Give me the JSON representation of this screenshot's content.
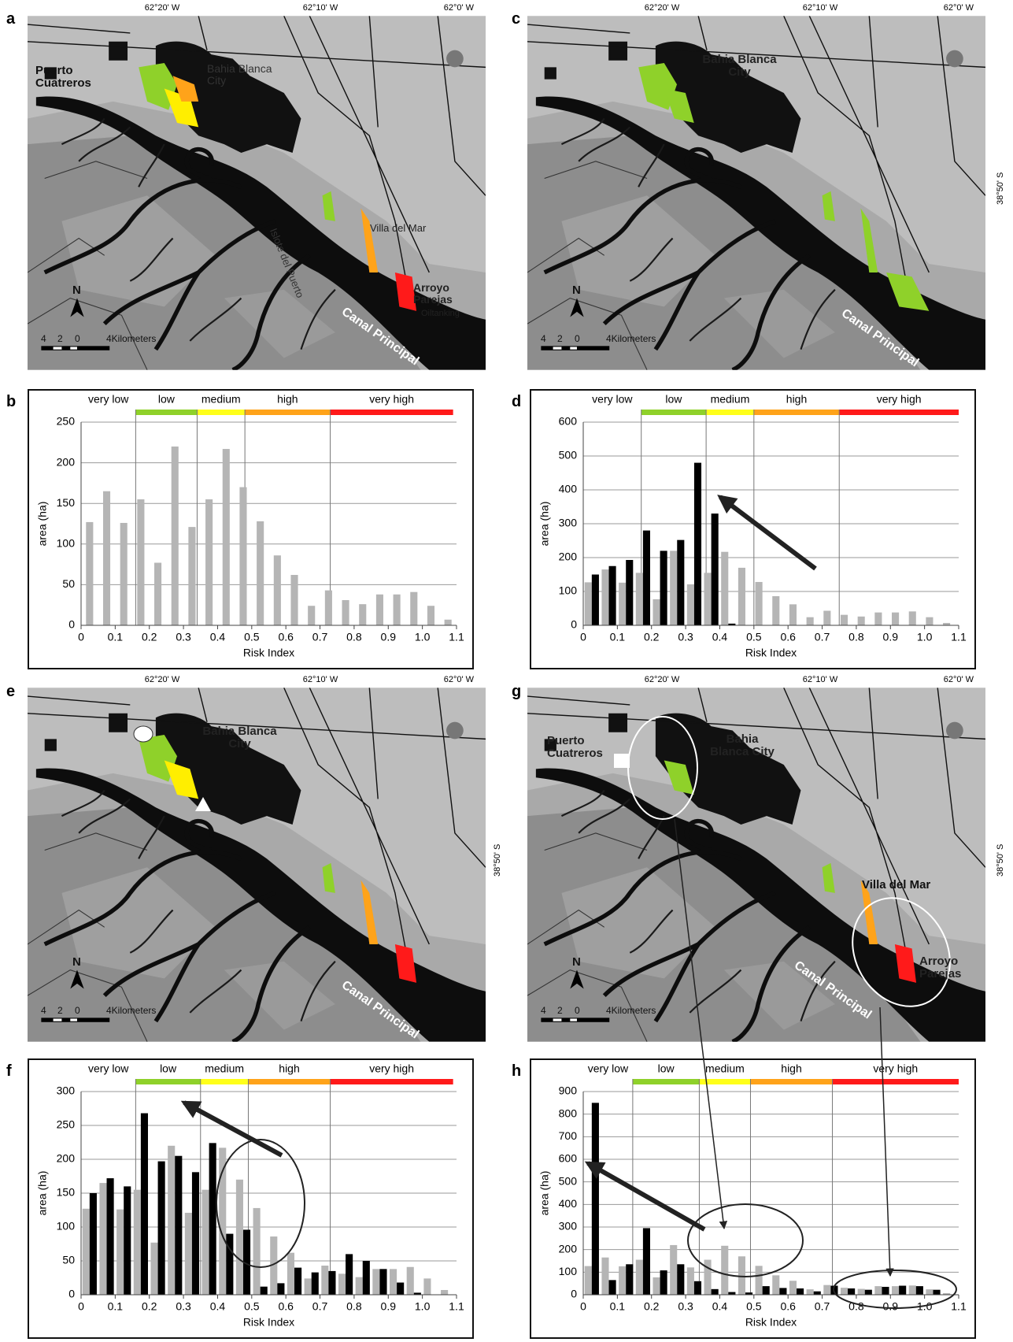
{
  "maps": [
    {
      "panel": "a",
      "lon_ticks": [
        "62°20' W",
        "62°10' W",
        "62°0' W"
      ],
      "labels": [
        "Puerto Cuatreros",
        "Bahia Blanca City",
        "Islote del Puerto",
        "Villa del Mar",
        "Arroyo Parejas",
        "Oiltanking",
        "Canal Principal"
      ],
      "scale_bar": [
        "4",
        "2",
        "0",
        "4Kilometers"
      ],
      "north": "N"
    },
    {
      "panel": "c",
      "lon_ticks": [
        "62°20' W",
        "62°10' W",
        "62°0' W"
      ],
      "lat_tick": "38°50' S",
      "labels": [
        "Bahia Blanca City",
        "Canal Principal"
      ],
      "scale_bar": [
        "4",
        "2",
        "0",
        "4Kilometers"
      ],
      "north": "N"
    },
    {
      "panel": "e",
      "lon_ticks": [
        "62°20' W",
        "62°10' W",
        "62°0' W"
      ],
      "lat_tick": "38°50' S",
      "labels": [
        "Bahia Blanca City",
        "Canal Principal"
      ],
      "scale_bar": [
        "4",
        "2",
        "0",
        "4Kilometers"
      ],
      "north": "N"
    },
    {
      "panel": "g",
      "lon_ticks": [
        "62°20' W",
        "62°10' W",
        "62°0' W"
      ],
      "lat_tick": "38°50' S",
      "labels": [
        "Puerto Cuatreros",
        "Bahia Blanca City",
        "Villa del Mar",
        "Arroyo Parejas",
        "Canal Principal"
      ],
      "scale_bar": [
        "4",
        "2",
        "0",
        "4Kilometers"
      ],
      "north": "N"
    }
  ],
  "chart_data": [
    {
      "panel": "b",
      "type": "histogram",
      "xlabel": "Risk Index",
      "ylabel": "area (ha)",
      "bins": [
        0,
        0.05,
        0.1,
        0.15,
        0.2,
        0.25,
        0.3,
        0.35,
        0.4,
        0.45,
        0.5,
        0.55,
        0.6,
        0.65,
        0.7,
        0.75,
        0.8,
        0.85,
        0.9,
        0.95,
        1.0,
        1.05,
        1.1
      ],
      "series": [
        {
          "color": "#b5b5b5",
          "values": [
            127,
            165,
            126,
            155,
            77,
            220,
            121,
            155,
            217,
            170,
            128,
            86,
            62,
            24,
            43,
            31,
            26,
            38,
            38,
            41,
            24,
            7
          ]
        }
      ],
      "xlim": [
        0,
        1.1
      ],
      "ylim": [
        0,
        250
      ],
      "xticks": [
        0,
        0.1,
        0.2,
        0.3,
        0.4,
        0.5,
        0.6,
        0.7,
        0.8,
        0.9,
        {
          "value": 1,
          "label": "1.0"
        },
        1.1
      ],
      "yticks": [
        0,
        50,
        100,
        150,
        200,
        250
      ],
      "grid": true,
      "risk_classes": [
        {
          "name": "very low",
          "range": [
            0,
            0.16
          ]
        },
        {
          "name": "low",
          "color": "#8fd12a",
          "range": [
            0.16,
            0.34
          ]
        },
        {
          "name": "medium",
          "color": "#ffff1a",
          "range": [
            0.34,
            0.48
          ]
        },
        {
          "name": "high",
          "color": "#ffa31a",
          "range": [
            0.48,
            0.73
          ]
        },
        {
          "name": "very high",
          "color": "#ff1a1a",
          "range": [
            0.73,
            1.09
          ]
        }
      ]
    },
    {
      "panel": "d",
      "type": "histogram",
      "xlabel": "Risk Index",
      "ylabel": "area (ha)",
      "bins": [
        0,
        0.05,
        0.1,
        0.15,
        0.2,
        0.25,
        0.3,
        0.35,
        0.4,
        0.45,
        0.5,
        0.55,
        0.6,
        0.65,
        0.7,
        0.75,
        0.8,
        0.85,
        0.9,
        0.95,
        1.0,
        1.05,
        1.1
      ],
      "series": [
        {
          "color": "#b5b5b5",
          "values": [
            127,
            165,
            126,
            155,
            77,
            220,
            121,
            155,
            217,
            170,
            128,
            86,
            62,
            24,
            43,
            31,
            26,
            38,
            38,
            41,
            24,
            7
          ]
        },
        {
          "color": "#000000",
          "values": [
            150,
            175,
            193,
            280,
            220,
            252,
            480,
            330,
            5,
            0,
            0,
            0,
            0,
            0,
            0,
            0,
            0,
            0,
            0,
            0,
            0,
            0
          ]
        }
      ],
      "xlim": [
        0,
        1.1
      ],
      "ylim": [
        0,
        600
      ],
      "xticks": [
        0,
        0.1,
        0.2,
        0.3,
        0.4,
        0.5,
        0.6,
        0.7,
        0.8,
        0.9,
        {
          "value": 1,
          "label": "1.0"
        },
        1.1
      ],
      "yticks": [
        0,
        100,
        200,
        300,
        400,
        500,
        600
      ],
      "grid": true,
      "risk_classes": [
        {
          "name": "very low",
          "range": [
            0,
            0.17
          ]
        },
        {
          "name": "low",
          "color": "#8fd12a",
          "range": [
            0.17,
            0.36
          ]
        },
        {
          "name": "medium",
          "color": "#ffff1a",
          "range": [
            0.36,
            0.5
          ]
        },
        {
          "name": "high",
          "color": "#ffa31a",
          "range": [
            0.5,
            0.75
          ]
        },
        {
          "name": "very high",
          "color": "#ff1a1a",
          "range": [
            0.75,
            1.1
          ]
        }
      ]
    },
    {
      "panel": "f",
      "type": "histogram",
      "xlabel": "Risk Index",
      "ylabel": "area (ha)",
      "bins": [
        0,
        0.05,
        0.1,
        0.15,
        0.2,
        0.25,
        0.3,
        0.35,
        0.4,
        0.45,
        0.5,
        0.55,
        0.6,
        0.65,
        0.7,
        0.75,
        0.8,
        0.85,
        0.9,
        0.95,
        1.0,
        1.05,
        1.1
      ],
      "series": [
        {
          "color": "#b5b5b5",
          "values": [
            127,
            165,
            126,
            155,
            77,
            220,
            121,
            155,
            217,
            170,
            128,
            86,
            62,
            24,
            43,
            31,
            26,
            38,
            38,
            41,
            24,
            7
          ]
        },
        {
          "color": "#000000",
          "values": [
            150,
            172,
            160,
            268,
            197,
            205,
            181,
            224,
            90,
            96,
            12,
            17,
            40,
            33,
            35,
            60,
            50,
            38,
            18,
            3,
            0,
            0
          ]
        }
      ],
      "xlim": [
        0,
        1.1
      ],
      "ylim": [
        0,
        300
      ],
      "xticks": [
        0,
        0.1,
        0.2,
        0.3,
        0.4,
        0.5,
        0.6,
        0.7,
        0.8,
        0.9,
        {
          "value": 1,
          "label": "1.0"
        },
        1.1
      ],
      "yticks": [
        0,
        50,
        100,
        150,
        200,
        250,
        300
      ],
      "grid": true,
      "risk_classes": [
        {
          "name": "very low",
          "range": [
            0,
            0.16
          ]
        },
        {
          "name": "low",
          "color": "#8fd12a",
          "range": [
            0.16,
            0.35
          ]
        },
        {
          "name": "medium",
          "color": "#ffff1a",
          "range": [
            0.35,
            0.49
          ]
        },
        {
          "name": "high",
          "color": "#ffa31a",
          "range": [
            0.49,
            0.73
          ]
        },
        {
          "name": "very high",
          "color": "#ff1a1a",
          "range": [
            0.73,
            1.09
          ]
        }
      ]
    },
    {
      "panel": "h",
      "type": "histogram",
      "xlabel": "Risk Index",
      "ylabel": "area (ha)",
      "bins": [
        0,
        0.05,
        0.1,
        0.15,
        0.2,
        0.25,
        0.3,
        0.35,
        0.4,
        0.45,
        0.5,
        0.55,
        0.6,
        0.65,
        0.7,
        0.75,
        0.8,
        0.85,
        0.9,
        0.95,
        1.0,
        1.05,
        1.1
      ],
      "series": [
        {
          "color": "#b5b5b5",
          "values": [
            127,
            165,
            126,
            155,
            77,
            220,
            121,
            155,
            217,
            170,
            128,
            86,
            62,
            24,
            43,
            31,
            26,
            38,
            38,
            41,
            24,
            7
          ]
        },
        {
          "color": "#000000",
          "values": [
            850,
            65,
            135,
            295,
            108,
            135,
            60,
            25,
            12,
            10,
            38,
            30,
            28,
            15,
            40,
            28,
            22,
            35,
            40,
            38,
            22,
            0
          ]
        }
      ],
      "xlim": [
        0,
        1.1
      ],
      "ylim": [
        0,
        900
      ],
      "xticks": [
        0,
        0.1,
        0.2,
        0.3,
        0.4,
        0.5,
        0.6,
        0.7,
        0.8,
        0.9,
        {
          "value": 1,
          "label": "1.0"
        },
        1.1
      ],
      "yticks": [
        0,
        100,
        200,
        300,
        400,
        500,
        600,
        700,
        800,
        900
      ],
      "grid": true,
      "risk_classes": [
        {
          "name": "very low",
          "range": [
            0,
            0.145
          ]
        },
        {
          "name": "low",
          "color": "#8fd12a",
          "range": [
            0.145,
            0.34
          ]
        },
        {
          "name": "medium",
          "color": "#ffff1a",
          "range": [
            0.34,
            0.49
          ]
        },
        {
          "name": "high",
          "color": "#ffa31a",
          "range": [
            0.49,
            0.73
          ]
        },
        {
          "name": "very high",
          "color": "#ff1a1a",
          "range": [
            0.73,
            1.1
          ]
        }
      ]
    }
  ]
}
